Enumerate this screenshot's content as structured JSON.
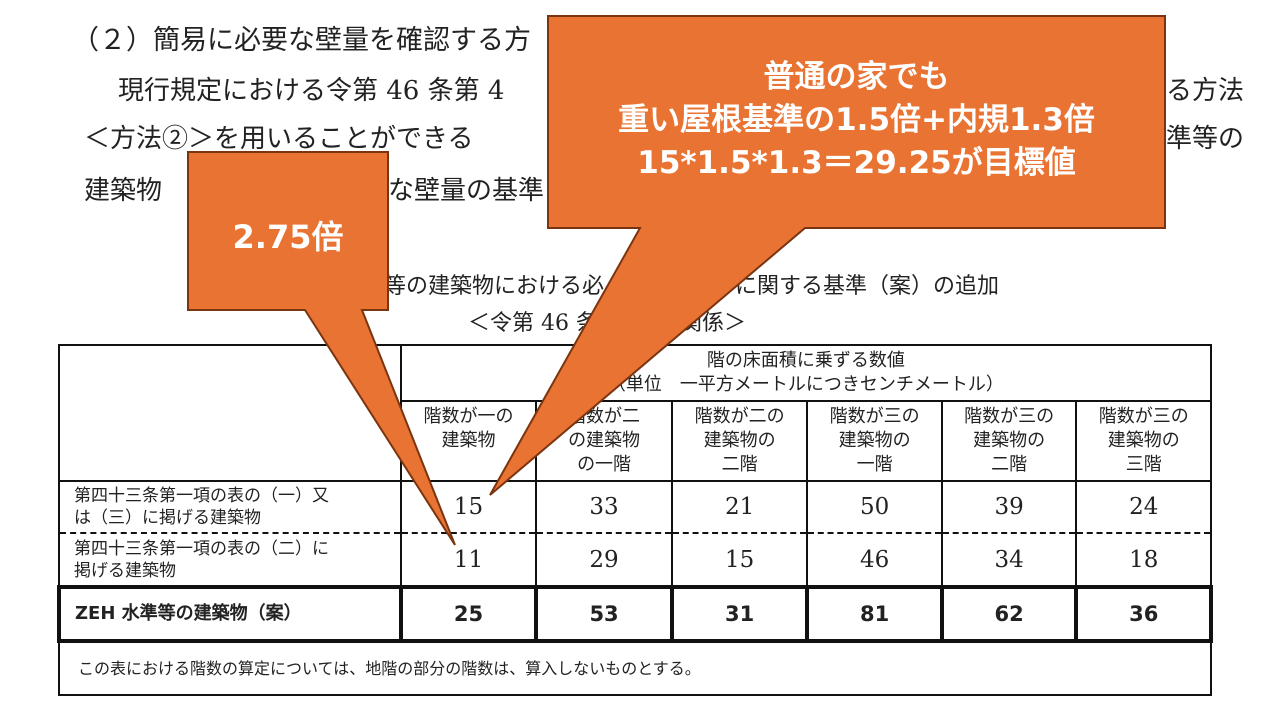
{
  "document": {
    "heading": "（２）簡易に必要な壁量を確認する方",
    "line1_left": "現行規定における令第 46 条第 4",
    "line1_right": "る方法",
    "line2_left": "＜方法②＞を用いることができる",
    "line2_right": "準等の",
    "line3_left": "建築物",
    "line3_mid": "な壁量の基準",
    "caption1_left": "等の建築物における必",
    "caption1_right": "に関する基準（案）の追加",
    "caption2_left": "＜令第 46 条",
    "caption2_right": "関係＞"
  },
  "table": {
    "header_main": "階の床面積に乗ずる数値",
    "header_unit": "（単位　一平方メートルにつきセンチメートル）",
    "columns": [
      [
        "階数が一の",
        "建築物",
        ""
      ],
      [
        "階数が二",
        "の建築物",
        "の一階"
      ],
      [
        "階数が二の",
        "建築物の",
        "二階"
      ],
      [
        "階数が三の",
        "建築物の",
        "一階"
      ],
      [
        "階数が三の",
        "建築物の",
        "二階"
      ],
      [
        "階数が三の",
        "建築物の",
        "三階"
      ]
    ],
    "rows": [
      {
        "label": [
          "第四十三条第一項の表の（一）又",
          "は（三）に掲げる建築物"
        ],
        "values": [
          "15",
          "33",
          "21",
          "50",
          "39",
          "24"
        ]
      },
      {
        "label": [
          "第四十三条第一項の表の（二）に",
          "掲げる建築物"
        ],
        "values": [
          "11",
          "29",
          "15",
          "46",
          "34",
          "18"
        ]
      },
      {
        "label": [
          "ZEH 水準等の建築物（案）"
        ],
        "values": [
          "25",
          "53",
          "31",
          "81",
          "62",
          "36"
        ]
      }
    ],
    "footnote": "この表における階数の算定については、地階の部分の階数は、算入しないものとする。"
  },
  "callouts": [
    {
      "lines": [
        "2.75倍"
      ]
    },
    {
      "lines": [
        "普通の家でも",
        "重い屋根基準の1.5倍+内規1.3倍",
        "15*1.5*1.3＝29.25が目標値"
      ]
    }
  ],
  "colors": {
    "callout_fill": "#E97333",
    "callout_border": "#7A3410"
  }
}
